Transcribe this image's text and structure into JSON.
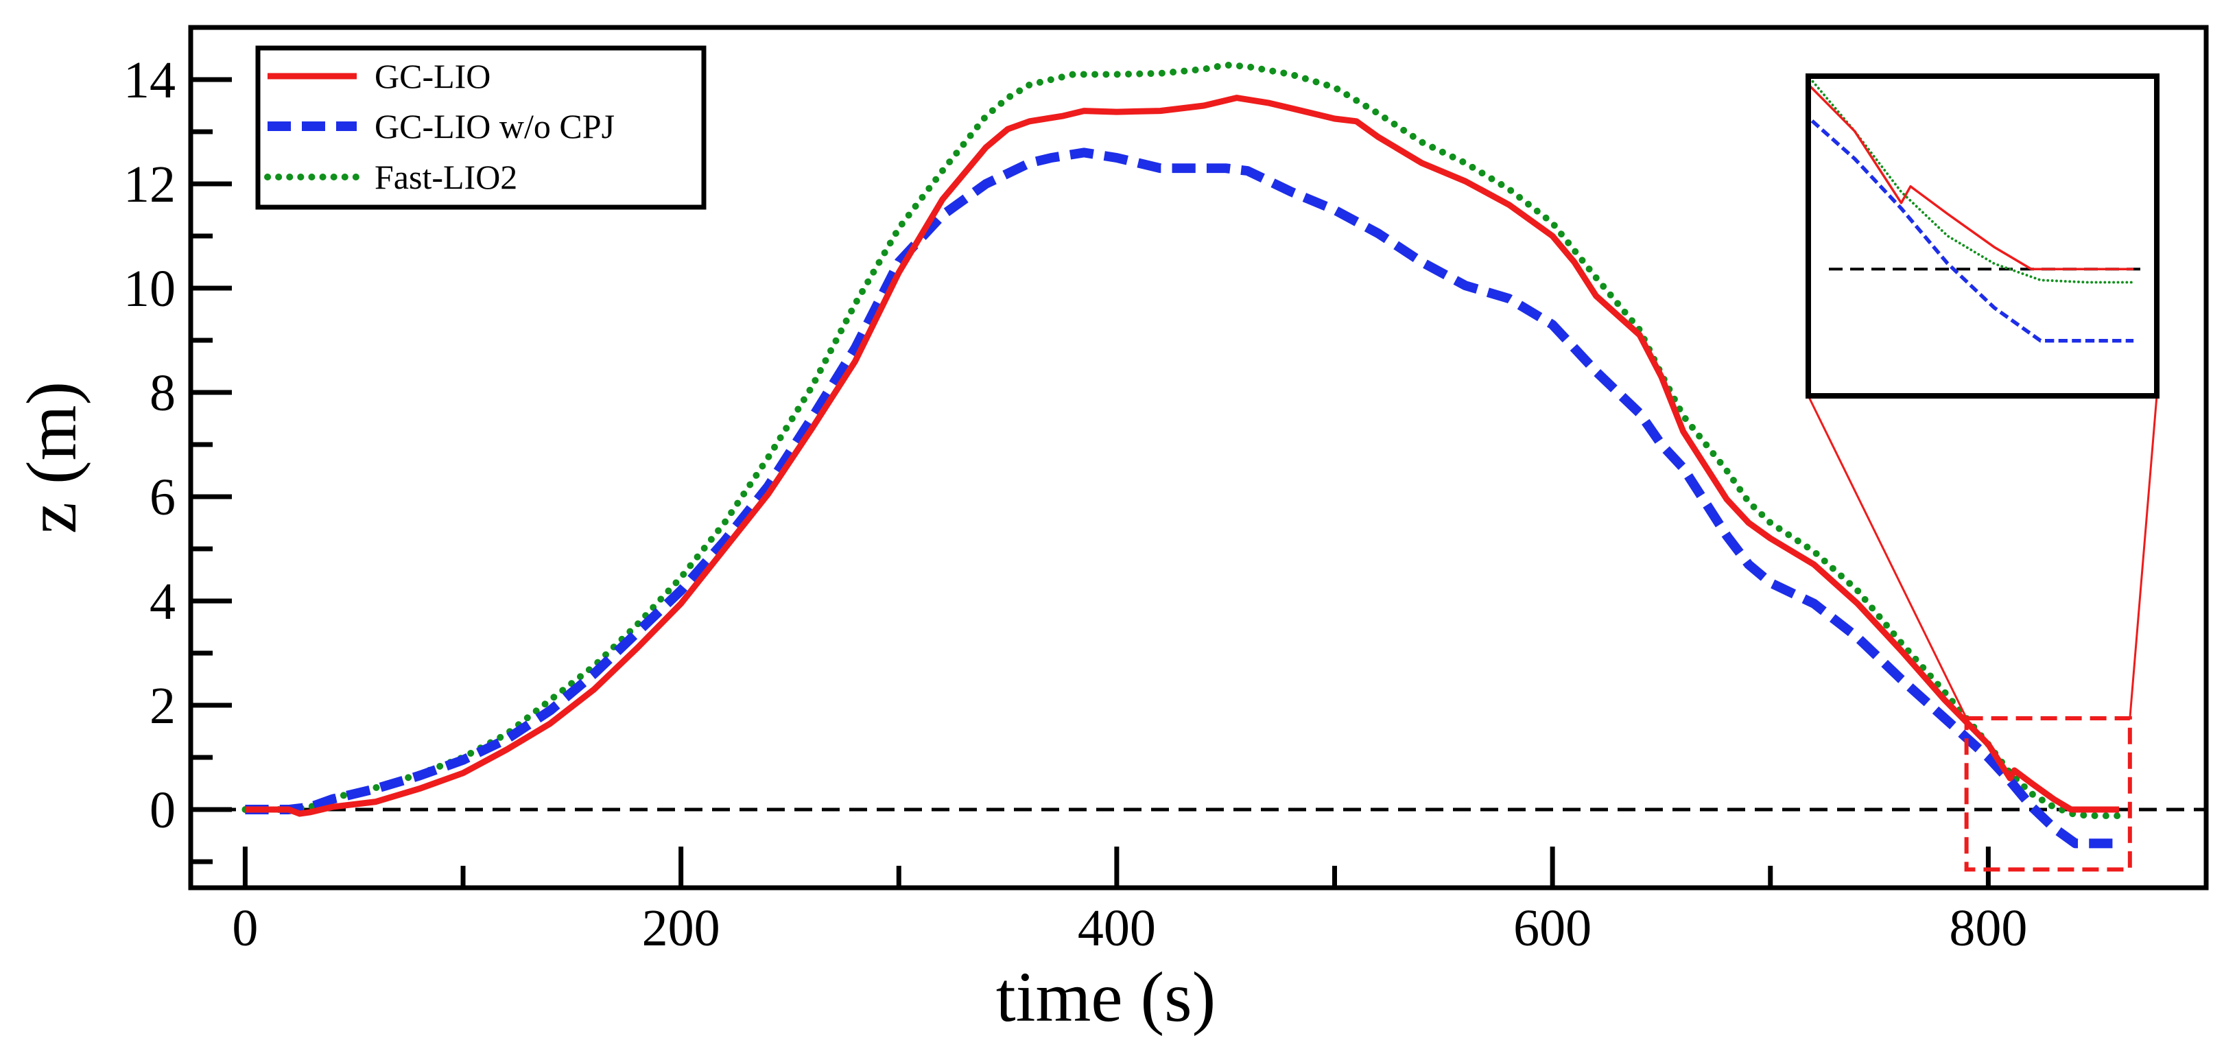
{
  "chart_data": {
    "type": "line",
    "title": "",
    "xlabel": "time (s)",
    "ylabel": "z (m)",
    "xlim": [
      -25,
      900
    ],
    "ylim": [
      -1.5,
      15
    ],
    "xticks": [
      0,
      200,
      400,
      600,
      800
    ],
    "xminor_ticks": [
      100,
      300,
      500,
      700
    ],
    "yticks": [
      0,
      2,
      4,
      6,
      8,
      10,
      12,
      14
    ],
    "yminor_ticks": [
      -1,
      1,
      3,
      5,
      7,
      9,
      11,
      13
    ],
    "grid": false,
    "legend_position": "top-left",
    "reference_line": {
      "y": 0,
      "color": "#000000",
      "style": "dashed"
    },
    "series": [
      {
        "name": "GC-LIO",
        "color": "#ee1c1c",
        "style": "solid",
        "x": [
          0,
          20,
          25,
          30,
          40,
          60,
          80,
          100,
          120,
          140,
          160,
          180,
          200,
          220,
          240,
          260,
          280,
          300,
          320,
          340,
          350,
          360,
          375,
          385,
          400,
          420,
          440,
          455,
          470,
          480,
          490,
          500,
          510,
          520,
          540,
          560,
          580,
          600,
          610,
          620,
          640,
          650,
          660,
          680,
          690,
          700,
          720,
          740,
          760,
          780,
          800,
          810,
          812,
          820,
          830,
          838,
          845,
          850,
          855,
          860
        ],
        "y": [
          0,
          0,
          -0.08,
          -0.05,
          0.05,
          0.15,
          0.4,
          0.7,
          1.15,
          1.65,
          2.3,
          3.1,
          3.95,
          5.0,
          6.05,
          7.3,
          8.6,
          10.3,
          11.7,
          12.7,
          13.05,
          13.2,
          13.3,
          13.4,
          13.38,
          13.4,
          13.5,
          13.65,
          13.55,
          13.45,
          13.35,
          13.25,
          13.2,
          12.9,
          12.4,
          12.05,
          11.6,
          11.0,
          10.5,
          9.85,
          9.1,
          8.3,
          7.25,
          5.95,
          5.5,
          5.2,
          4.7,
          3.95,
          3.05,
          2.1,
          1.25,
          0.6,
          0.75,
          0.5,
          0.2,
          0.0,
          0.0,
          0.0,
          0.0,
          0.0
        ]
      },
      {
        "name": "GC-LIO w/o CPJ",
        "color": "#1d2ee8",
        "style": "dashed",
        "x": [
          0,
          20,
          30,
          40,
          60,
          80,
          100,
          120,
          140,
          160,
          180,
          200,
          220,
          240,
          260,
          280,
          300,
          320,
          340,
          360,
          370,
          385,
          400,
          420,
          440,
          450,
          460,
          480,
          500,
          520,
          540,
          560,
          580,
          600,
          620,
          640,
          650,
          660,
          680,
          690,
          700,
          720,
          740,
          760,
          780,
          800,
          810,
          820,
          830,
          840,
          850,
          860
        ],
        "y": [
          0,
          0,
          0.05,
          0.2,
          0.4,
          0.65,
          0.95,
          1.35,
          1.9,
          2.6,
          3.4,
          4.2,
          5.15,
          6.2,
          7.5,
          8.85,
          10.5,
          11.4,
          12.0,
          12.4,
          12.5,
          12.6,
          12.5,
          12.3,
          12.3,
          12.3,
          12.25,
          11.85,
          11.5,
          11.05,
          10.5,
          10.05,
          9.8,
          9.3,
          8.4,
          7.6,
          7.0,
          6.55,
          5.25,
          4.7,
          4.35,
          3.95,
          3.3,
          2.5,
          1.75,
          1.0,
          0.55,
          0.05,
          -0.35,
          -0.65,
          -0.65,
          -0.65
        ]
      },
      {
        "name": "Fast-LIO2",
        "color": "#10901c",
        "style": "dotted",
        "x": [
          0,
          20,
          30,
          40,
          60,
          80,
          100,
          120,
          140,
          160,
          180,
          200,
          220,
          240,
          260,
          280,
          300,
          320,
          340,
          350,
          360,
          380,
          400,
          420,
          440,
          450,
          460,
          480,
          500,
          520,
          540,
          560,
          580,
          600,
          620,
          640,
          650,
          660,
          680,
          690,
          700,
          720,
          740,
          760,
          780,
          800,
          810,
          820,
          830,
          840,
          850,
          860
        ],
        "y": [
          0,
          0,
          0.05,
          0.22,
          0.42,
          0.68,
          1.0,
          1.45,
          2.1,
          2.75,
          3.55,
          4.45,
          5.5,
          6.75,
          8.1,
          9.7,
          11.15,
          12.25,
          13.3,
          13.65,
          13.9,
          14.1,
          14.1,
          14.12,
          14.2,
          14.28,
          14.25,
          14.1,
          13.85,
          13.35,
          12.8,
          12.4,
          11.9,
          11.25,
          10.2,
          9.2,
          8.35,
          7.55,
          6.5,
          5.9,
          5.5,
          4.95,
          4.2,
          3.2,
          2.25,
          1.25,
          0.7,
          0.3,
          0.05,
          -0.1,
          -0.12,
          -0.12
        ]
      }
    ],
    "zoom_region": {
      "x": [
        790,
        865
      ],
      "y": [
        -1.15,
        1.75
      ]
    },
    "inset": {
      "xlim": [
        790,
        865
      ],
      "ylim": [
        -1.15,
        1.75
      ],
      "axes_visible": false
    }
  }
}
